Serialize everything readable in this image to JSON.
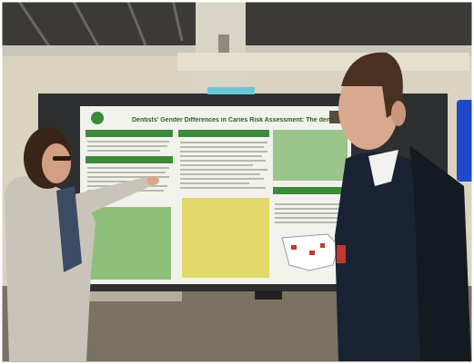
{
  "photo": {
    "poster": {
      "title": "Dentists' Gender Differences in Caries Risk Assessment: The dental PBRN"
    }
  },
  "colors": {
    "ceiling": "#3b3a36",
    "wall": "#d9d3c0",
    "floor": "#7a7262",
    "poster_board": "#2e2f31",
    "poster_paper": "#f1f2ec",
    "poster_green": "#3d8a3a",
    "poster_yellow": "#e3d86a",
    "woman_jacket": "#c9c4ba",
    "woman_hair": "#3a2418",
    "man_suit": "#1a2233",
    "backpack": "#151a22",
    "bottle_blue": "#1f49c8"
  }
}
